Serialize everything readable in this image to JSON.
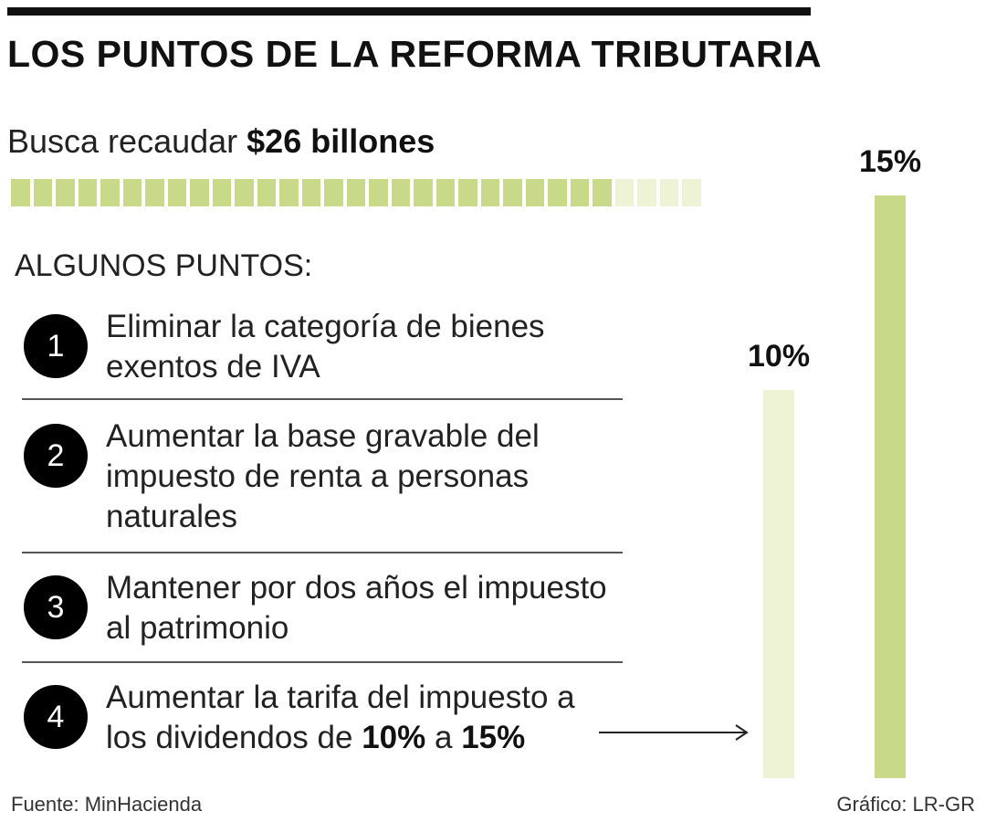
{
  "header": {
    "title": "LOS PUNTOS DE LA REFORMA TRIBUTARIA"
  },
  "subtitle": {
    "prefix": "Busca recaudar ",
    "amount": "$26 billones"
  },
  "progress": {
    "total_segments": 31,
    "filled_segments": 27,
    "filled_color": "#c8da8a",
    "empty_color": "#eef3d6"
  },
  "points_heading": "ALGUNOS PUNTOS:",
  "points": [
    {
      "number": "1",
      "lines": [
        "Eliminar la categoría de bienes",
        "exentos de IVA"
      ]
    },
    {
      "number": "2",
      "lines": [
        "Aumentar la base gravable del",
        "impuesto de renta a personas",
        "naturales"
      ]
    },
    {
      "number": "3",
      "lines": [
        "Mantener por dos años el impuesto",
        "al patrimonio"
      ]
    },
    {
      "number": "4",
      "line1": "Aumentar la tarifa del impuesto a",
      "line2_prefix": "los dividendos de ",
      "from": "10%",
      "connector": " a ",
      "to": "15%"
    }
  ],
  "chart_data": {
    "type": "bar",
    "categories": [
      "",
      ""
    ],
    "values": [
      10,
      15
    ],
    "data_labels": [
      "10%",
      "15%"
    ],
    "colors": [
      "#eef3d6",
      "#c8da8a"
    ],
    "ylim": [
      0,
      15
    ],
    "grid": false,
    "title": "",
    "xlabel": "",
    "ylabel": ""
  },
  "footer": {
    "source": "Fuente: MinHacienda",
    "credit": "Gráfico: LR-GR"
  }
}
